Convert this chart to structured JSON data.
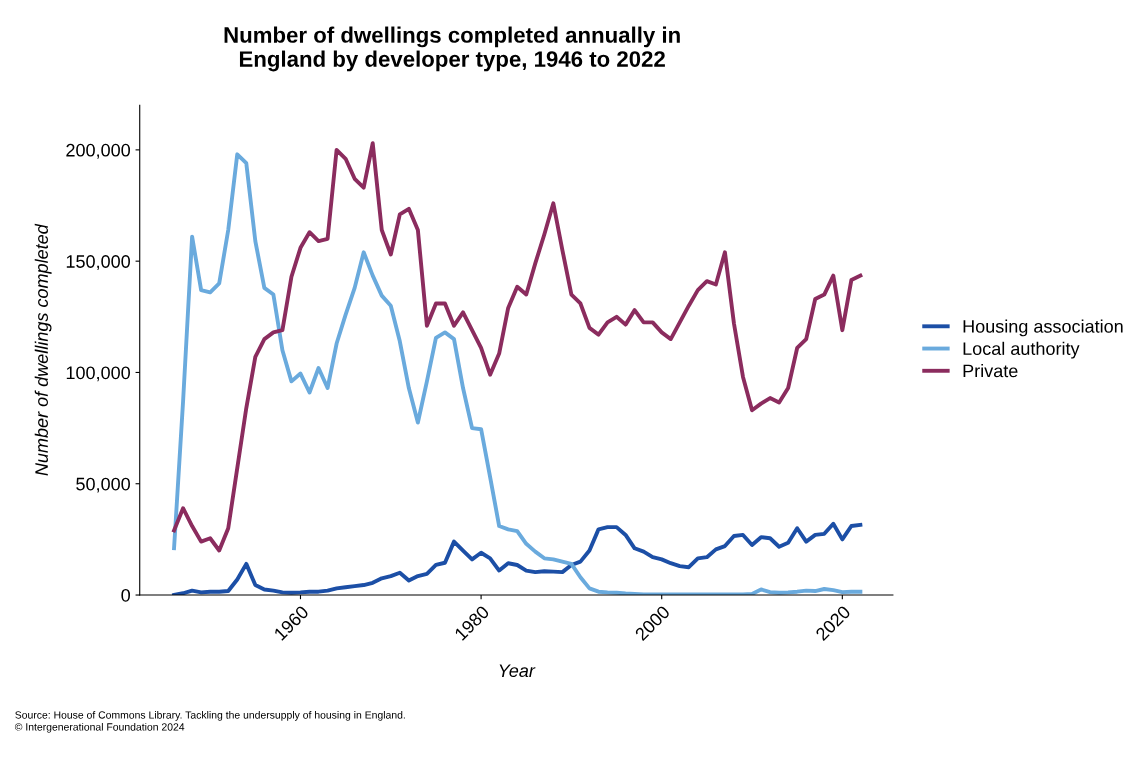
{
  "chart_data": {
    "type": "line",
    "title": "Number of dwellings completed annually in\nEngland by developer type, 1946 to 2022",
    "xlabel": "Year",
    "ylabel": "Number of dwellings completed",
    "x": [
      1946,
      1947,
      1948,
      1949,
      1950,
      1951,
      1952,
      1953,
      1954,
      1955,
      1956,
      1957,
      1958,
      1959,
      1960,
      1961,
      1962,
      1963,
      1964,
      1965,
      1966,
      1967,
      1968,
      1969,
      1970,
      1971,
      1972,
      1973,
      1974,
      1975,
      1976,
      1977,
      1978,
      1979,
      1980,
      1981,
      1982,
      1983,
      1984,
      1985,
      1986,
      1987,
      1988,
      1989,
      1990,
      1991,
      1992,
      1993,
      1994,
      1995,
      1996,
      1997,
      1998,
      1999,
      2000,
      2001,
      2002,
      2003,
      2004,
      2005,
      2006,
      2007,
      2008,
      2009,
      2010,
      2011,
      2012,
      2013,
      2014,
      2015,
      2016,
      2017,
      2018,
      2019,
      2020,
      2021,
      2022
    ],
    "series": [
      {
        "name": "Housing association",
        "color": "#1c4fa6",
        "values": [
          0,
          800,
          2000,
          1200,
          1500,
          1500,
          1800,
          7000,
          14000,
          4500,
          2500,
          2000,
          1200,
          1000,
          1200,
          1500,
          1500,
          2000,
          3000,
          3500,
          4000,
          4500,
          5500,
          7500,
          8500,
          10000,
          6500,
          8500,
          9500,
          13500,
          14500,
          24000,
          20000,
          16000,
          19000,
          16500,
          11000,
          14300,
          13500,
          11000,
          10300,
          10700,
          10500,
          10300,
          13500,
          15000,
          20000,
          29500,
          30500,
          30500,
          27000,
          21000,
          19500,
          17000,
          16000,
          14300,
          13000,
          12500,
          16500,
          17000,
          20500,
          22000,
          26500,
          27000,
          22500,
          26000,
          25500,
          21700,
          23500,
          30000,
          24000,
          27000,
          27500,
          32000,
          25000,
          31000,
          31500
        ]
      },
      {
        "name": "Local authority",
        "color": "#6aaadd",
        "values": [
          21000,
          87000,
          161000,
          137000,
          136000,
          140000,
          164000,
          198000,
          194000,
          159000,
          138000,
          135000,
          110000,
          96000,
          99500,
          91000,
          102000,
          93000,
          113000,
          126000,
          138000,
          154000,
          143500,
          134500,
          130000,
          114000,
          93000,
          77500,
          96000,
          115500,
          118000,
          115000,
          93000,
          75000,
          74500,
          53000,
          31000,
          29500,
          28700,
          23000,
          19500,
          16500,
          16000,
          15000,
          14000,
          8000,
          3000,
          1500,
          1200,
          1000,
          700,
          500,
          300,
          300,
          300,
          300,
          300,
          300,
          300,
          300,
          300,
          300,
          300,
          300,
          500,
          2500,
          1300,
          1000,
          1200,
          1500,
          2000,
          1800,
          2700,
          2200,
          1300,
          1500,
          1500
        ]
      },
      {
        "name": "Private",
        "color": "#8b2c5e",
        "values": [
          29000,
          39000,
          31000,
          24000,
          25500,
          20000,
          30000,
          57000,
          84000,
          107000,
          115000,
          118000,
          119000,
          143000,
          156000,
          163000,
          159000,
          160000,
          200000,
          196000,
          187000,
          183000,
          203000,
          164000,
          153000,
          171000,
          173500,
          164000,
          121000,
          131000,
          131000,
          121000,
          127000,
          119000,
          111000,
          99000,
          108500,
          129000,
          138500,
          135000,
          149000,
          162000,
          176000,
          155000,
          135000,
          131000,
          120000,
          117000,
          122500,
          125000,
          121500,
          128000,
          122500,
          122500,
          118000,
          115000,
          122500,
          130000,
          137000,
          141000,
          139500,
          154000,
          122000,
          98000,
          83000,
          86000,
          88500,
          86500,
          93000,
          111000,
          115000,
          133000,
          135000,
          143500,
          119000,
          141500,
          143500
        ]
      }
    ],
    "xlim": [
      1942.2,
      2025.6
    ],
    "xticks": [
      1960,
      1980,
      2000,
      2020
    ],
    "ylim": [
      0,
      220000
    ],
    "yticks": [
      {
        "value": 0,
        "label": "0"
      },
      {
        "value": 50000,
        "label": "50,000"
      },
      {
        "value": 100000,
        "label": "100,000"
      },
      {
        "value": 150000,
        "label": "150,000"
      },
      {
        "value": 200000,
        "label": "200,000"
      }
    ],
    "grid": false,
    "legend": "right",
    "marker": "none",
    "line_style": "solid",
    "annotations": [
      "Source: House of Commons Library. Tackling the undersupply of housing in England.\n© Intergenerational Foundation 2024"
    ]
  }
}
